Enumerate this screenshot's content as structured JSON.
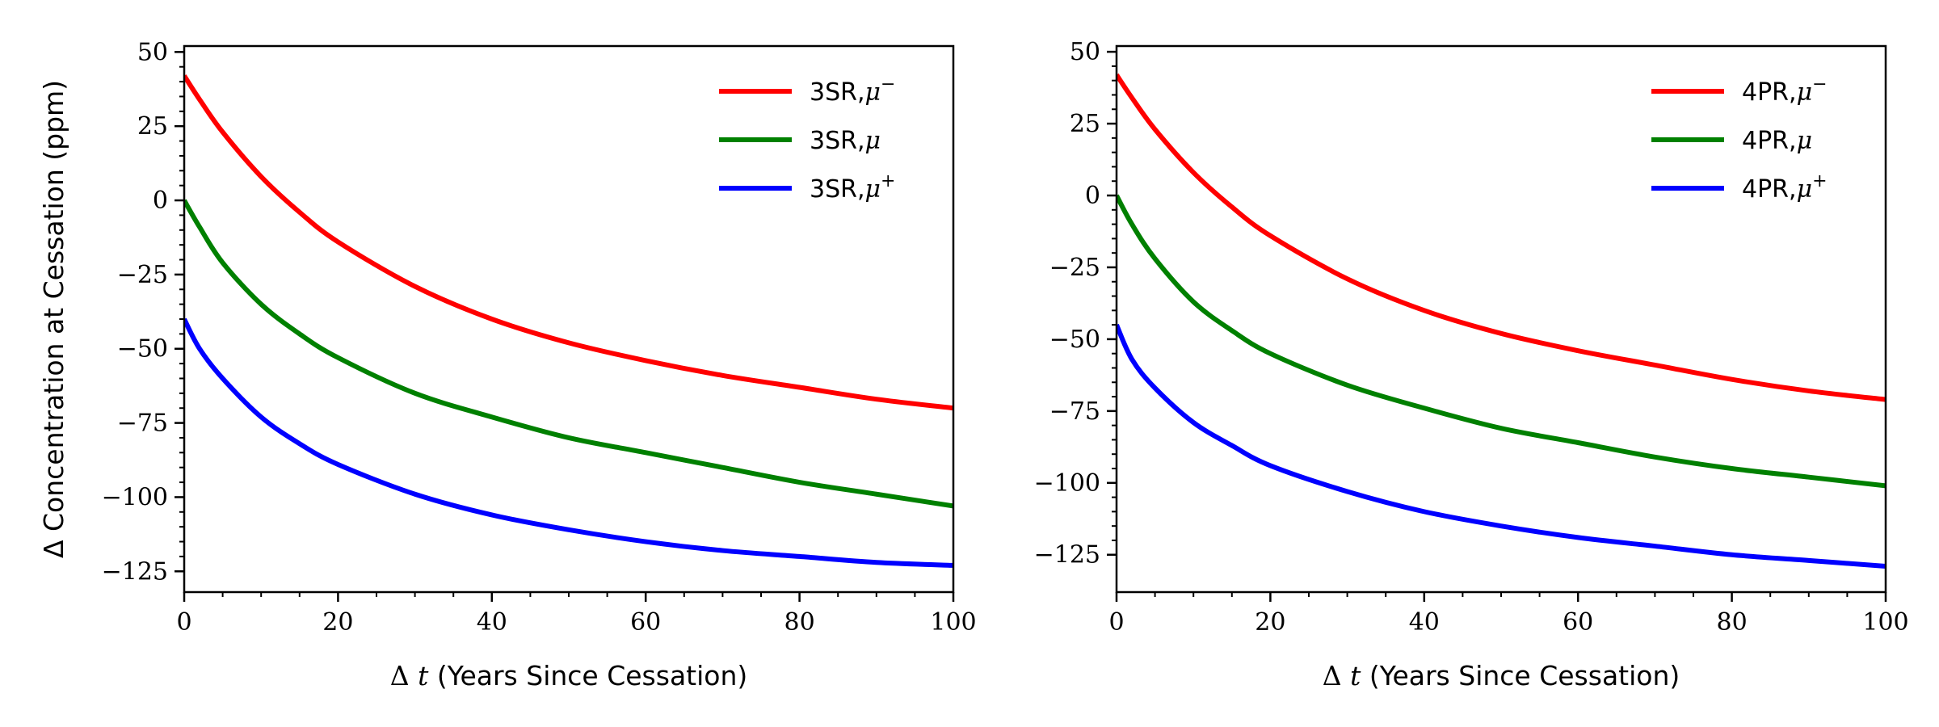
{
  "chart_data": [
    {
      "type": "line",
      "xlabel_prefix": "Δ",
      "xlabel_var": "t",
      "xlabel_rest": "(Years Since Cessation)",
      "ylabel": "Δ Concentration at Cessation (ppm)",
      "xlim": [
        0,
        100
      ],
      "ylim": [
        -132,
        52
      ],
      "xticks": [
        0,
        20,
        40,
        60,
        80,
        100
      ],
      "xtick_labels": [
        "0",
        "20",
        "40",
        "60",
        "80",
        "100"
      ],
      "yticks": [
        50,
        25,
        0,
        -25,
        -50,
        -75,
        -100,
        -125
      ],
      "ytick_labels": [
        "50",
        "25",
        "0",
        "−25",
        "−50",
        "−75",
        "−100",
        "−125"
      ],
      "grid": false,
      "legend_position": "top-right",
      "x": [
        0,
        2,
        5,
        10,
        15,
        20,
        30,
        40,
        50,
        60,
        70,
        80,
        90,
        100
      ],
      "series": [
        {
          "name": "3SR,",
          "mu": "μ",
          "sup": "−",
          "color": "#ff0000",
          "values": [
            42,
            34,
            23,
            8,
            -4,
            -14,
            -29,
            -40,
            -48,
            -54,
            -59,
            -63,
            -67,
            -70
          ]
        },
        {
          "name": "3SR,",
          "mu": "μ",
          "sup": "",
          "color": "#008000",
          "values": [
            0,
            -9,
            -21,
            -35,
            -45,
            -53,
            -65,
            -73,
            -80,
            -85,
            -90,
            -95,
            -99,
            -103
          ]
        },
        {
          "name": "3SR,",
          "mu": "μ",
          "sup": "+",
          "color": "#0000ff",
          "values": [
            -40,
            -50,
            -60,
            -73,
            -82,
            -89,
            -99,
            -106,
            -111,
            -115,
            -118,
            -120,
            -122,
            -123
          ]
        }
      ]
    },
    {
      "type": "line",
      "xlabel_prefix": "Δ",
      "xlabel_var": "t",
      "xlabel_rest": "(Years Since Cessation)",
      "ylabel": "",
      "xlim": [
        0,
        100
      ],
      "ylim": [
        -138,
        52
      ],
      "xticks": [
        0,
        20,
        40,
        60,
        80,
        100
      ],
      "xtick_labels": [
        "0",
        "20",
        "40",
        "60",
        "80",
        "100"
      ],
      "yticks": [
        50,
        25,
        0,
        -25,
        -50,
        -75,
        -100,
        -125
      ],
      "ytick_labels": [
        "50",
        "25",
        "0",
        "−25",
        "−50",
        "−75",
        "−100",
        "−125"
      ],
      "grid": false,
      "legend_position": "top-right",
      "x": [
        0,
        2,
        5,
        10,
        15,
        20,
        30,
        40,
        50,
        60,
        70,
        80,
        90,
        100
      ],
      "series": [
        {
          "name": "4PR,",
          "mu": "μ",
          "sup": "−",
          "color": "#ff0000",
          "values": [
            42,
            34,
            23,
            8,
            -4,
            -14,
            -29,
            -40,
            -48,
            -54,
            -59,
            -64,
            -68,
            -71
          ]
        },
        {
          "name": "4PR,",
          "mu": "μ",
          "sup": "",
          "color": "#008000",
          "values": [
            0,
            -10,
            -22,
            -37,
            -47,
            -55,
            -66,
            -74,
            -81,
            -86,
            -91,
            -95,
            -98,
            -101
          ]
        },
        {
          "name": "4PR,",
          "mu": "μ",
          "sup": "+",
          "color": "#0000ff",
          "values": [
            -45,
            -57,
            -67,
            -79,
            -87,
            -94,
            -103,
            -110,
            -115,
            -119,
            -122,
            -125,
            -127,
            -129
          ]
        }
      ]
    }
  ]
}
